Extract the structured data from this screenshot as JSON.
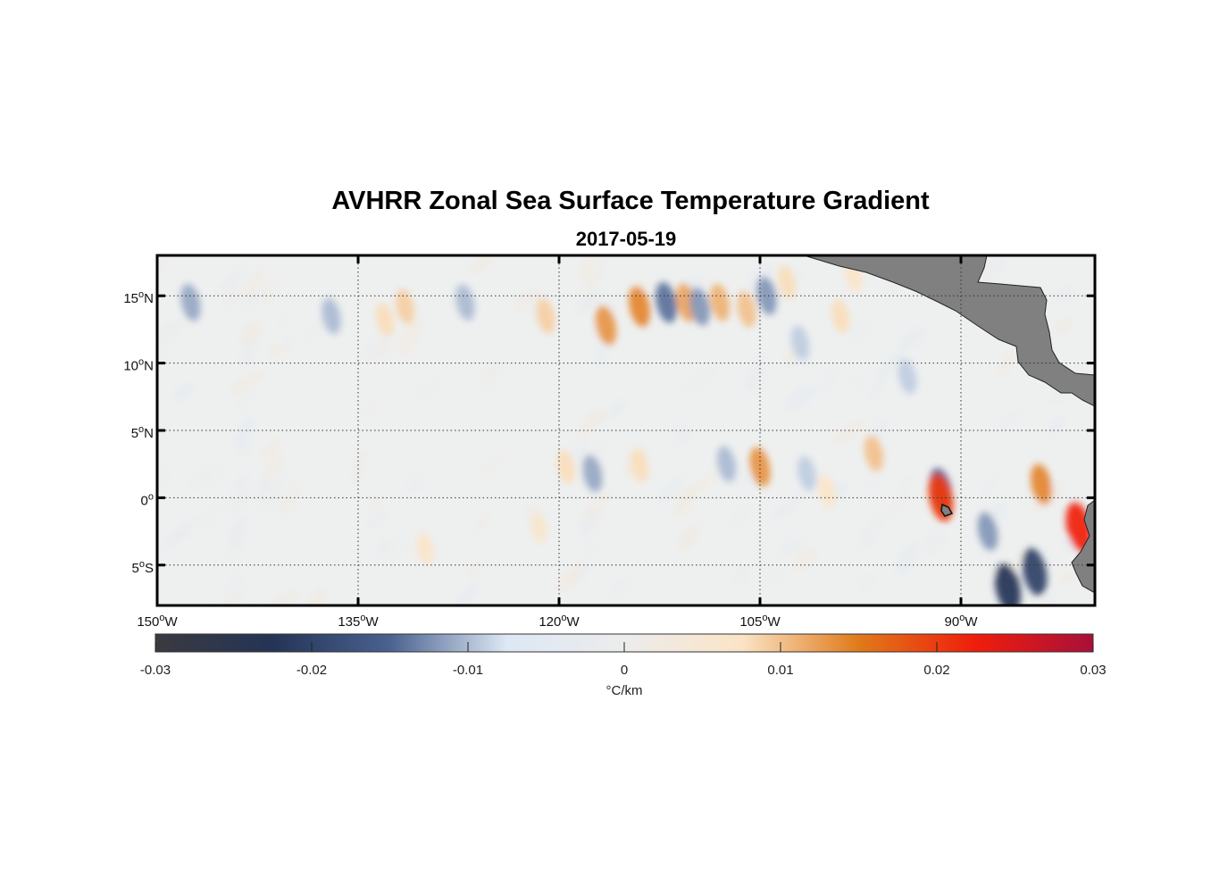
{
  "chart_data": {
    "type": "heatmap",
    "title": "AVHRR Zonal Sea Surface Temperature Gradient",
    "subtitle": "2017-05-19",
    "x_axis": {
      "range": [
        -150,
        -80
      ],
      "ticks": [
        {
          "value": -150,
          "deg": "150",
          "dir": "W"
        },
        {
          "value": -135,
          "deg": "135",
          "dir": "W"
        },
        {
          "value": -120,
          "deg": "120",
          "dir": "W"
        },
        {
          "value": -105,
          "deg": "105",
          "dir": "W"
        },
        {
          "value": -90,
          "deg": "90",
          "dir": "W"
        }
      ]
    },
    "y_axis": {
      "range": [
        -8,
        18
      ],
      "ticks": [
        {
          "value": 15,
          "deg": "15",
          "dir": "N"
        },
        {
          "value": 10,
          "deg": "10",
          "dir": "N"
        },
        {
          "value": 5,
          "deg": "5",
          "dir": "N"
        },
        {
          "value": 0,
          "deg": "0",
          "dir": ""
        },
        {
          "value": -5,
          "deg": "5",
          "dir": "S"
        }
      ]
    },
    "grid": true,
    "colorbar": {
      "range": [
        -0.03,
        0.03
      ],
      "ticks": [
        {
          "value": -0.03,
          "label": "-0.03"
        },
        {
          "value": -0.02,
          "label": "-0.02"
        },
        {
          "value": -0.01,
          "label": "-0.01"
        },
        {
          "value": 0,
          "label": "0"
        },
        {
          "value": 0.01,
          "label": "0.01"
        },
        {
          "value": 0.02,
          "label": "0.02"
        },
        {
          "value": 0.03,
          "label": "0.03"
        }
      ],
      "label": "°C/km",
      "colors": [
        "#3a3a3f",
        "#243456",
        "#4a6290",
        "#dde8f4",
        "#ececec",
        "#fbe4c6",
        "#e07a1a",
        "#f01d0c",
        "#a8103a"
      ]
    },
    "features": [
      {
        "kind": "warm",
        "lon": -114.0,
        "lat": 14.2,
        "value": 0.014
      },
      {
        "kind": "warm",
        "lon": -116.5,
        "lat": 12.8,
        "value": 0.013
      },
      {
        "kind": "warm",
        "lon": -110.5,
        "lat": 14.5,
        "value": 0.012
      },
      {
        "kind": "warm",
        "lon": -108.0,
        "lat": 14.5,
        "value": 0.011
      },
      {
        "kind": "warm",
        "lon": -106.0,
        "lat": 14.0,
        "value": 0.01
      },
      {
        "kind": "warm",
        "lon": -121.0,
        "lat": 13.5,
        "value": 0.009
      },
      {
        "kind": "warm",
        "lon": -131.5,
        "lat": 14.2,
        "value": 0.009
      },
      {
        "kind": "warm",
        "lon": -133.0,
        "lat": 13.2,
        "value": 0.008
      },
      {
        "kind": "warm",
        "lon": -99.0,
        "lat": 13.5,
        "value": 0.008
      },
      {
        "kind": "warm",
        "lon": -103.0,
        "lat": 16.0,
        "value": 0.008
      },
      {
        "kind": "warm",
        "lon": -98.0,
        "lat": 16.5,
        "value": 0.007
      },
      {
        "kind": "cold",
        "lon": -112.0,
        "lat": 14.5,
        "value": -0.014
      },
      {
        "kind": "cold",
        "lon": -109.5,
        "lat": 14.2,
        "value": -0.012
      },
      {
        "kind": "cold",
        "lon": -104.5,
        "lat": 15.0,
        "value": -0.012
      },
      {
        "kind": "cold",
        "lon": -127.0,
        "lat": 14.5,
        "value": -0.01
      },
      {
        "kind": "cold",
        "lon": -147.5,
        "lat": 14.5,
        "value": -0.011
      },
      {
        "kind": "cold",
        "lon": -137.0,
        "lat": 13.5,
        "value": -0.01
      },
      {
        "kind": "cold",
        "lon": -102.0,
        "lat": 11.5,
        "value": -0.009
      },
      {
        "kind": "cold",
        "lon": -94.0,
        "lat": 9.0,
        "value": -0.009
      },
      {
        "kind": "warm",
        "lon": -105.0,
        "lat": 2.3,
        "value": 0.013
      },
      {
        "kind": "warm",
        "lon": -96.5,
        "lat": 3.3,
        "value": 0.01
      },
      {
        "kind": "warm",
        "lon": -119.5,
        "lat": 2.3,
        "value": 0.008
      },
      {
        "kind": "warm",
        "lon": -114.0,
        "lat": 2.4,
        "value": 0.008
      },
      {
        "kind": "warm",
        "lon": -100.0,
        "lat": 0.5,
        "value": 0.007
      },
      {
        "kind": "cold",
        "lon": -117.5,
        "lat": 1.8,
        "value": -0.011
      },
      {
        "kind": "cold",
        "lon": -107.5,
        "lat": 2.5,
        "value": -0.01
      },
      {
        "kind": "cold",
        "lon": -101.5,
        "lat": 1.8,
        "value": -0.009
      },
      {
        "kind": "cold",
        "lon": -91.5,
        "lat": 0.6,
        "value": -0.016
      },
      {
        "kind": "warm",
        "lon": -91.5,
        "lat": 0.0,
        "value": 0.02
      },
      {
        "kind": "warm",
        "lon": -84.0,
        "lat": 1.0,
        "value": 0.014
      },
      {
        "kind": "warm",
        "lon": -81.2,
        "lat": -2.2,
        "value": 0.022
      },
      {
        "kind": "cold",
        "lon": -84.5,
        "lat": -5.5,
        "value": -0.02
      },
      {
        "kind": "cold",
        "lon": -86.5,
        "lat": -6.7,
        "value": -0.022
      },
      {
        "kind": "cold",
        "lon": -88.0,
        "lat": -2.5,
        "value": -0.012
      },
      {
        "kind": "warm",
        "lon": -130.0,
        "lat": -3.8,
        "value": 0.007
      },
      {
        "kind": "warm",
        "lon": -121.5,
        "lat": -2.2,
        "value": 0.006
      }
    ]
  }
}
